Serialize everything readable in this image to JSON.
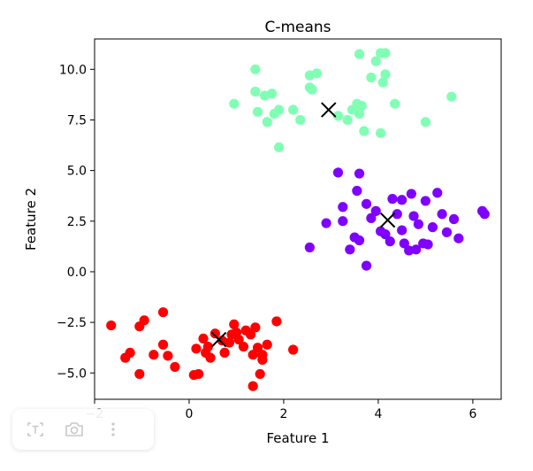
{
  "chart_data": {
    "type": "scatter",
    "title": "C-means",
    "xlabel": "Feature 1",
    "ylabel": "Feature 2",
    "xlim": [
      -2,
      6.6
    ],
    "ylim": [
      -6.3,
      11.5
    ],
    "xticks": [
      -2,
      0,
      2,
      4,
      6
    ],
    "yticks": [
      -5.0,
      -2.5,
      0.0,
      2.5,
      5.0,
      7.5,
      10.0
    ],
    "grid": false,
    "colors": {
      "cluster_0": "#ff0000",
      "cluster_1": "#80ffb4",
      "cluster_2": "#8000ff",
      "center": "#000000"
    },
    "series": [
      {
        "color": "#ff0000",
        "points": [
          [
            -1.65,
            -2.65
          ],
          [
            -1.35,
            -4.25
          ],
          [
            -1.25,
            -4.0
          ],
          [
            -1.05,
            -2.7
          ],
          [
            -0.95,
            -2.4
          ],
          [
            -1.05,
            -5.05
          ],
          [
            -0.75,
            -4.1
          ],
          [
            -0.55,
            -2.0
          ],
          [
            -0.55,
            -3.6
          ],
          [
            -0.45,
            -4.15
          ],
          [
            -0.3,
            -4.7
          ],
          [
            0.1,
            -5.1
          ],
          [
            0.15,
            -3.8
          ],
          [
            0.2,
            -5.05
          ],
          [
            0.3,
            -3.3
          ],
          [
            0.35,
            -4.0
          ],
          [
            0.4,
            -3.7
          ],
          [
            0.45,
            -4.25
          ],
          [
            0.55,
            -3.05
          ],
          [
            0.7,
            -3.4
          ],
          [
            0.75,
            -4.0
          ],
          [
            0.85,
            -3.5
          ],
          [
            0.9,
            -3.1
          ],
          [
            0.95,
            -2.6
          ],
          [
            1.0,
            -3.0
          ],
          [
            1.05,
            -3.35
          ],
          [
            1.15,
            -3.7
          ],
          [
            1.2,
            -2.9
          ],
          [
            1.3,
            -3.1
          ],
          [
            1.35,
            -4.1
          ],
          [
            1.4,
            -2.75
          ],
          [
            1.45,
            -3.75
          ],
          [
            1.55,
            -4.1
          ],
          [
            1.55,
            -4.35
          ],
          [
            1.35,
            -5.65
          ],
          [
            1.5,
            -5.05
          ],
          [
            1.65,
            -3.6
          ],
          [
            1.85,
            -2.45
          ],
          [
            2.2,
            -3.85
          ]
        ],
        "center": [
          0.63,
          -3.35
        ]
      },
      {
        "color": "#80ffb4",
        "points": [
          [
            0.95,
            8.3
          ],
          [
            1.4,
            10.0
          ],
          [
            1.4,
            8.9
          ],
          [
            1.45,
            7.9
          ],
          [
            1.6,
            8.7
          ],
          [
            1.65,
            7.4
          ],
          [
            1.75,
            8.8
          ],
          [
            1.8,
            7.8
          ],
          [
            1.9,
            8.0
          ],
          [
            1.9,
            6.15
          ],
          [
            2.2,
            8.0
          ],
          [
            2.35,
            7.5
          ],
          [
            2.55,
            9.1
          ],
          [
            2.55,
            9.7
          ],
          [
            2.6,
            9.0
          ],
          [
            2.7,
            9.8
          ],
          [
            3.15,
            7.7
          ],
          [
            3.35,
            7.5
          ],
          [
            3.45,
            8.0
          ],
          [
            3.55,
            8.3
          ],
          [
            3.6,
            7.8
          ],
          [
            3.65,
            8.2
          ],
          [
            3.6,
            10.75
          ],
          [
            3.7,
            6.95
          ],
          [
            3.85,
            9.6
          ],
          [
            3.95,
            10.4
          ],
          [
            4.05,
            10.8
          ],
          [
            4.05,
            6.85
          ],
          [
            4.1,
            9.35
          ],
          [
            4.15,
            9.75
          ],
          [
            4.15,
            10.8
          ],
          [
            4.35,
            8.3
          ],
          [
            5.0,
            7.4
          ],
          [
            5.55,
            8.65
          ]
        ],
        "center": [
          2.95,
          8.0
        ]
      },
      {
        "color": "#8000ff",
        "points": [
          [
            2.55,
            1.2
          ],
          [
            2.9,
            2.4
          ],
          [
            3.15,
            4.9
          ],
          [
            3.25,
            3.2
          ],
          [
            3.25,
            2.5
          ],
          [
            3.4,
            1.1
          ],
          [
            3.5,
            1.7
          ],
          [
            3.55,
            4.0
          ],
          [
            3.6,
            4.85
          ],
          [
            3.6,
            1.55
          ],
          [
            3.75,
            0.3
          ],
          [
            3.75,
            3.35
          ],
          [
            3.85,
            2.65
          ],
          [
            3.95,
            3.0
          ],
          [
            4.05,
            2.0
          ],
          [
            4.15,
            1.85
          ],
          [
            4.25,
            1.5
          ],
          [
            4.3,
            3.6
          ],
          [
            4.4,
            2.85
          ],
          [
            4.5,
            3.55
          ],
          [
            4.5,
            2.05
          ],
          [
            4.55,
            1.4
          ],
          [
            4.65,
            1.05
          ],
          [
            4.7,
            3.85
          ],
          [
            4.75,
            2.75
          ],
          [
            4.8,
            1.1
          ],
          [
            4.85,
            2.35
          ],
          [
            4.95,
            1.4
          ],
          [
            5.0,
            3.5
          ],
          [
            5.05,
            1.35
          ],
          [
            5.15,
            2.2
          ],
          [
            5.25,
            3.9
          ],
          [
            5.35,
            2.85
          ],
          [
            5.45,
            1.95
          ],
          [
            5.6,
            2.6
          ],
          [
            5.7,
            1.65
          ],
          [
            6.2,
            3.0
          ],
          [
            6.25,
            2.85
          ]
        ],
        "center": [
          4.2,
          2.55
        ]
      }
    ]
  }
}
